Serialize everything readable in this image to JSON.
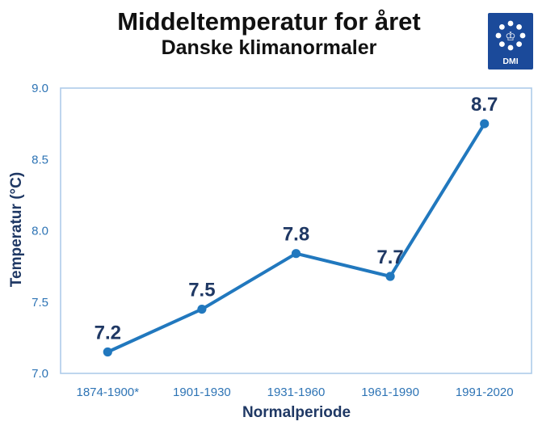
{
  "header": {
    "title": "Middeltemperatur for året",
    "subtitle": "Danske klimanormaler"
  },
  "logo": {
    "label": "DMI",
    "crown_glyph": "♔",
    "bg_color": "#1B4A9A",
    "dot_color": "#ffffff"
  },
  "axes": {
    "y_title": "Temperatur (°C)",
    "x_title": "Normalperiode"
  },
  "chart_data": {
    "type": "line",
    "title": "Middeltemperatur for året",
    "subtitle": "Danske klimanormaler",
    "xlabel": "Normalperiode",
    "ylabel": "Temperatur (°C)",
    "categories": [
      "1874-1900*",
      "1901-1930",
      "1931-1960",
      "1961-1990",
      "1991-2020"
    ],
    "series": [
      {
        "name": "Middeltemperatur",
        "values": [
          7.2,
          7.5,
          7.8,
          7.7,
          8.7
        ],
        "plot_values": [
          7.15,
          7.45,
          7.84,
          7.68,
          8.75
        ],
        "point_labels": [
          "7.2",
          "7.5",
          "7.8",
          "7.7",
          "8.7"
        ]
      }
    ],
    "ylim": [
      7.0,
      9.0
    ],
    "yticks": [
      7.0,
      7.5,
      8.0,
      8.5,
      9.0
    ],
    "ytick_labels": [
      "7.0",
      "7.5",
      "8.0",
      "8.5",
      "9.0"
    ],
    "grid": false,
    "legend": "none",
    "colors": {
      "line": "#2178BE",
      "marker": "#2178BE",
      "data_label": "#1F3864",
      "tick_label": "#2E74B5",
      "axis_title": "#1F3864",
      "plot_border": "#AECBEA"
    }
  }
}
